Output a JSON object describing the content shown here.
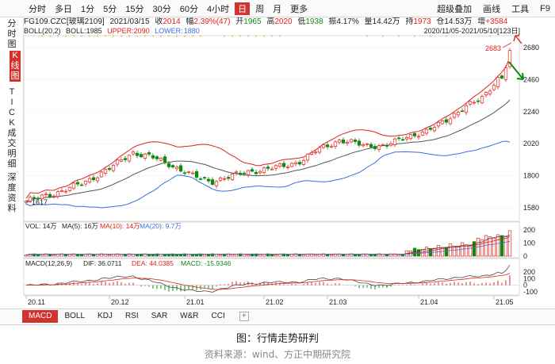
{
  "toolbar": {
    "periods": [
      "分时",
      "多日",
      "1分",
      "5分",
      "15分",
      "30分",
      "60分",
      "4小时",
      "日",
      "周",
      "月",
      "更多"
    ],
    "active_period": "日",
    "right": [
      "超级叠加",
      "画线",
      "工具",
      "F9"
    ]
  },
  "leftnav": {
    "items": [
      "分时图",
      "K线图",
      "TICK",
      "成交明细",
      "深度资料"
    ],
    "active": "K线图"
  },
  "quote": {
    "symbol": "FG109.CZC[玻璃2109]",
    "date": "2021/03/15",
    "close_label": "收",
    "close": "2014",
    "change_label": "幅",
    "change": "2.39%(47)",
    "open_label": "开",
    "open": "1965",
    "high_label": "高",
    "high": "2020",
    "low_label": "低",
    "low": "1938",
    "amplitude_label": "振",
    "amplitude": "4.17%",
    "volume_label": "量",
    "volume": "14.42万",
    "hold_label": "持",
    "hold": "1973",
    "amount_label": "仓",
    "amount": "14.53万",
    "delta_label": "增",
    "delta": "+3584"
  },
  "boll": {
    "label": "BOLL(20,2)",
    "boll_label": "BOLL:",
    "boll": "1985",
    "upper_label": "UPPER:",
    "upper": "2090",
    "lower_label": "LOWER:",
    "lower": "1880"
  },
  "range_text": "2020/11/05-2021/05/10[123日]",
  "price_axis": {
    "ticks": [
      "2680",
      "2460",
      "2240",
      "2020",
      "1800",
      "1580"
    ]
  },
  "annotations": {
    "high": "2683",
    "low": "1617"
  },
  "vol": {
    "label": "VOL: 14万",
    "ma5_label": "MA(5): 16万",
    "ma10_label": "MA(10): 14万",
    "ma20_label": "MA(20): 9.7万",
    "ticks": [
      "200",
      "100",
      "0"
    ]
  },
  "macd": {
    "label": "MACD(12,26,9)",
    "dif_label": "DIF: 36.0711",
    "dea_label": "DEA: 44.0385",
    "macd_label": "MACD: -15.9346",
    "ticks": [
      "200",
      "100",
      "0",
      "-100"
    ]
  },
  "date_axis": [
    "20.11",
    "20.12",
    "21.01",
    "21.02",
    "21.03",
    "21.04",
    "21.05"
  ],
  "indicator_tabs": [
    "MACD",
    "BOLL",
    "KDJ",
    "RSI",
    "SAR",
    "W&R",
    "CCI"
  ],
  "active_indicator": "MACD",
  "caption": "图：行情走势研判",
  "source": "资料来源：wind、方正中期研究院",
  "colors": {
    "up": "#e0211b",
    "down": "#118811",
    "mid": "#555555",
    "upper": "#e0211b",
    "lower": "#3a6fe0",
    "accent": "#d0342c"
  },
  "chart_data": {
    "type": "candlestick",
    "title": "FG109.CZC[玻璃2109]",
    "x_range": [
      "2020/11/05",
      "2021/05/10"
    ],
    "count": 123,
    "ylim": [
      1580,
      2700
    ],
    "close_anchors": [
      {
        "date": "2020/11/05",
        "close": 1625
      },
      {
        "date": "2020/11/16",
        "close": 1680
      },
      {
        "date": "2020/11/27",
        "close": 1750
      },
      {
        "date": "2020/12/08",
        "close": 1860
      },
      {
        "date": "2020/12/16",
        "close": 1960
      },
      {
        "date": "2020/12/23",
        "close": 1930
      },
      {
        "date": "2020/12/30",
        "close": 1880
      },
      {
        "date": "2021/01/08",
        "close": 1800
      },
      {
        "date": "2021/01/15",
        "close": 1760
      },
      {
        "date": "2021/01/22",
        "close": 1790
      },
      {
        "date": "2021/01/29",
        "close": 1830
      },
      {
        "date": "2021/02/05",
        "close": 1840
      },
      {
        "date": "2021/02/19",
        "close": 1900
      },
      {
        "date": "2021/02/26",
        "close": 1990
      },
      {
        "date": "2021/03/05",
        "close": 2040
      },
      {
        "date": "2021/03/15",
        "close": 2014
      },
      {
        "date": "2021/03/23",
        "close": 2000
      },
      {
        "date": "2021/03/31",
        "close": 2070
      },
      {
        "date": "2021/04/08",
        "close": 2100
      },
      {
        "date": "2021/04/15",
        "close": 2180
      },
      {
        "date": "2021/04/22",
        "close": 2260
      },
      {
        "date": "2021/04/29",
        "close": 2330
      },
      {
        "date": "2021/05/07",
        "close": 2500
      },
      {
        "date": "2021/05/10",
        "close": 2683
      }
    ],
    "volume_ylim": [
      0,
      200
    ],
    "macd_ylim": [
      -100,
      200
    ]
  }
}
